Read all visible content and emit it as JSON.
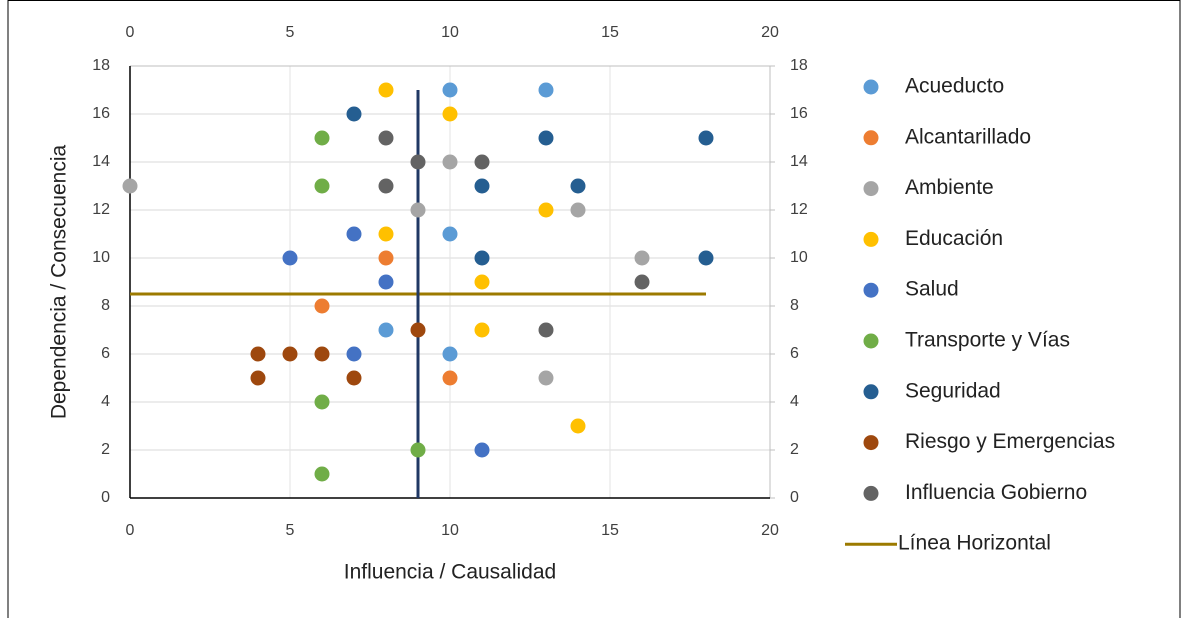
{
  "chart_data": {
    "type": "scatter",
    "xlabel": "Influencia / Causalidad",
    "ylabel": "Dependencia / Consecuencia",
    "xlim": [
      0,
      20
    ],
    "xticks": [
      0,
      5,
      10,
      15,
      20
    ],
    "ylim": [
      0,
      18
    ],
    "yticks": [
      0,
      2,
      4,
      6,
      8,
      10,
      12,
      14,
      16,
      18
    ],
    "x2lim": [
      0,
      20
    ],
    "x2ticks": [
      0,
      5,
      10,
      15,
      20
    ],
    "y2lim": [
      0,
      18
    ],
    "y2ticks": [
      0,
      2,
      4,
      6,
      8,
      10,
      12,
      14,
      16,
      18
    ],
    "grid": true,
    "legend": "right",
    "series": [
      {
        "name": "Acueducto",
        "color": "#5B9BD5",
        "x": [
          10,
          13,
          10,
          8,
          10
        ],
        "y": [
          17,
          17,
          11,
          7,
          6
        ]
      },
      {
        "name": "Alcantarillado",
        "color": "#ED7D31",
        "x": [
          8,
          6,
          10
        ],
        "y": [
          10,
          8,
          5
        ]
      },
      {
        "name": "Ambiente",
        "color": "#A5A5A5",
        "x": [
          0,
          10,
          9,
          14,
          16,
          13
        ],
        "y": [
          13,
          14,
          12,
          12,
          10,
          5
        ]
      },
      {
        "name": "Educación",
        "color": "#FFC000",
        "x": [
          8,
          10,
          13,
          8,
          11,
          11,
          14
        ],
        "y": [
          17,
          16,
          12,
          11,
          9,
          7,
          3
        ]
      },
      {
        "name": "Salud",
        "color": "#4472C4",
        "x": [
          7,
          5,
          8,
          7,
          11
        ],
        "y": [
          11,
          10,
          9,
          6,
          2
        ]
      },
      {
        "name": "Transporte y Vías",
        "color": "#70AD47",
        "x": [
          6,
          6,
          6,
          9,
          6
        ],
        "y": [
          15,
          13,
          4,
          2,
          1
        ]
      },
      {
        "name": "Seguridad",
        "color": "#255E91",
        "x": [
          7,
          13,
          18,
          11,
          14,
          11,
          18
        ],
        "y": [
          16,
          15,
          15,
          13,
          13,
          10,
          10
        ]
      },
      {
        "name": "Riesgo y Emergencias",
        "color": "#9E480E",
        "x": [
          9,
          4,
          5,
          6,
          4,
          7
        ],
        "y": [
          7,
          6,
          6,
          6,
          5,
          5
        ]
      },
      {
        "name": "Influencia Gobierno",
        "color": "#636363",
        "x": [
          8,
          9,
          11,
          8,
          16,
          13
        ],
        "y": [
          15,
          14,
          14,
          13,
          9,
          7
        ]
      },
      {
        "name": "Línea Horizontal",
        "color": "#9C7A00",
        "mode": "line",
        "x": [
          0,
          18
        ],
        "y": [
          8.5,
          8.5
        ]
      }
    ],
    "vertical_line": {
      "color": "#203864",
      "x": [
        9,
        9
      ],
      "y": [
        0,
        17
      ]
    }
  }
}
